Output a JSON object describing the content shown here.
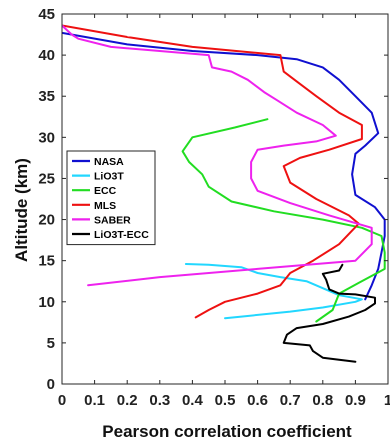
{
  "chart_data": {
    "type": "line",
    "title": "",
    "xlabel": "Pearson correlation coefficient",
    "ylabel": "Altitude (km)",
    "xlim": [
      0,
      1
    ],
    "ylim": [
      0,
      45
    ],
    "xticks": [
      0,
      0.1,
      0.2,
      0.3,
      0.4,
      0.5,
      0.6,
      0.7,
      0.8,
      0.9,
      1
    ],
    "xtick_labels": [
      "0",
      "0.1",
      "0.2",
      "0.3",
      "0.4",
      "0.5",
      "0.6",
      "0.7",
      "0.8",
      "0.9",
      "1"
    ],
    "yticks": [
      0,
      5,
      10,
      15,
      20,
      25,
      30,
      35,
      40,
      45
    ],
    "ytick_labels": [
      "0",
      "5",
      "10",
      "15",
      "20",
      "25",
      "30",
      "35",
      "40",
      "45"
    ],
    "grid": false,
    "legend_position": "left",
    "series": [
      {
        "name": "NASA",
        "color": "#1010d0",
        "points": [
          [
            0.93,
            10.3
          ],
          [
            0.95,
            12.0
          ],
          [
            0.97,
            14.0
          ],
          [
            0.98,
            16.0
          ],
          [
            0.99,
            18.0
          ],
          [
            0.99,
            20.0
          ],
          [
            0.96,
            21.5
          ],
          [
            0.9,
            23.0
          ],
          [
            0.89,
            25.5
          ],
          [
            0.9,
            28.0
          ],
          [
            0.93,
            29.0
          ],
          [
            0.97,
            30.5
          ],
          [
            0.95,
            33.0
          ],
          [
            0.9,
            35.0
          ],
          [
            0.85,
            37.0
          ],
          [
            0.8,
            38.5
          ],
          [
            0.72,
            39.5
          ],
          [
            0.6,
            40.0
          ],
          [
            0.4,
            40.5
          ],
          [
            0.2,
            41.3
          ],
          [
            0.0,
            42.7
          ]
        ]
      },
      {
        "name": "LiO3T",
        "color": "#22d7ff",
        "points": [
          [
            0.5,
            8.0
          ],
          [
            0.55,
            8.2
          ],
          [
            0.7,
            8.8
          ],
          [
            0.8,
            9.3
          ],
          [
            0.9,
            10.0
          ],
          [
            0.92,
            10.3
          ],
          [
            0.85,
            10.8
          ],
          [
            0.75,
            12.5
          ],
          [
            0.67,
            13.0
          ],
          [
            0.6,
            13.5
          ],
          [
            0.55,
            14.2
          ],
          [
            0.45,
            14.5
          ],
          [
            0.38,
            14.6
          ]
        ]
      },
      {
        "name": "ECC",
        "color": "#22dd22",
        "points": [
          [
            0.78,
            7.6
          ],
          [
            0.83,
            9.0
          ],
          [
            0.85,
            11.0
          ],
          [
            0.91,
            12.3
          ],
          [
            0.99,
            14.0
          ],
          [
            0.99,
            16.0
          ],
          [
            0.98,
            18.0
          ],
          [
            0.92,
            19.0
          ],
          [
            0.8,
            20.0
          ],
          [
            0.65,
            21.0
          ],
          [
            0.52,
            22.2
          ],
          [
            0.45,
            24.0
          ],
          [
            0.43,
            25.5
          ],
          [
            0.39,
            27.0
          ],
          [
            0.37,
            28.3
          ],
          [
            0.4,
            30.0
          ],
          [
            0.53,
            31.2
          ],
          [
            0.63,
            32.2
          ]
        ]
      },
      {
        "name": "MLS",
        "color": "#ee1111",
        "points": [
          [
            0.41,
            8.1
          ],
          [
            0.45,
            9.0
          ],
          [
            0.5,
            10.0
          ],
          [
            0.6,
            11.0
          ],
          [
            0.67,
            12.0
          ],
          [
            0.7,
            13.5
          ],
          [
            0.77,
            15.0
          ],
          [
            0.85,
            17.0
          ],
          [
            0.91,
            19.5
          ],
          [
            0.88,
            20.5
          ],
          [
            0.78,
            22.5
          ],
          [
            0.7,
            24.5
          ],
          [
            0.68,
            26.5
          ],
          [
            0.73,
            27.5
          ],
          [
            0.82,
            28.5
          ],
          [
            0.92,
            29.8
          ],
          [
            0.92,
            31.5
          ],
          [
            0.85,
            33.0
          ],
          [
            0.78,
            35.0
          ],
          [
            0.72,
            36.8
          ],
          [
            0.68,
            38.0
          ],
          [
            0.67,
            40.0
          ],
          [
            0.4,
            41.0
          ],
          [
            0.2,
            42.2
          ],
          [
            0.0,
            43.6
          ]
        ]
      },
      {
        "name": "SABER",
        "color": "#ee22ee",
        "points": [
          [
            0.08,
            12.0
          ],
          [
            0.3,
            13.0
          ],
          [
            0.6,
            14.0
          ],
          [
            0.9,
            15.0
          ],
          [
            0.95,
            17.0
          ],
          [
            0.95,
            19.0
          ],
          [
            0.82,
            20.5
          ],
          [
            0.7,
            22.0
          ],
          [
            0.6,
            23.5
          ],
          [
            0.58,
            25.0
          ],
          [
            0.58,
            27.0
          ],
          [
            0.6,
            28.5
          ],
          [
            0.68,
            29.0
          ],
          [
            0.78,
            29.5
          ],
          [
            0.84,
            30.2
          ],
          [
            0.8,
            31.5
          ],
          [
            0.72,
            33.0
          ],
          [
            0.66,
            34.5
          ],
          [
            0.62,
            35.5
          ],
          [
            0.57,
            37.0
          ],
          [
            0.52,
            38.0
          ],
          [
            0.46,
            38.5
          ],
          [
            0.45,
            40.0
          ],
          [
            0.3,
            40.5
          ],
          [
            0.15,
            41.0
          ],
          [
            0.05,
            42.0
          ],
          [
            0.03,
            42.5
          ],
          [
            0.0,
            43.6
          ]
        ]
      },
      {
        "name": "LiO3T-ECC",
        "color": "#000000",
        "points": [
          [
            0.9,
            2.7
          ],
          [
            0.8,
            3.2
          ],
          [
            0.77,
            4.0
          ],
          [
            0.76,
            4.7
          ],
          [
            0.68,
            5.0
          ],
          [
            0.69,
            6.0
          ],
          [
            0.72,
            6.8
          ],
          [
            0.8,
            7.3
          ],
          [
            0.88,
            8.2
          ],
          [
            0.93,
            9.0
          ],
          [
            0.96,
            9.8
          ],
          [
            0.96,
            10.5
          ],
          [
            0.9,
            10.9
          ],
          [
            0.85,
            11.0
          ],
          [
            0.82,
            11.5
          ],
          [
            0.81,
            12.7
          ],
          [
            0.8,
            13.4
          ],
          [
            0.85,
            13.8
          ],
          [
            0.86,
            14.5
          ]
        ]
      }
    ]
  }
}
